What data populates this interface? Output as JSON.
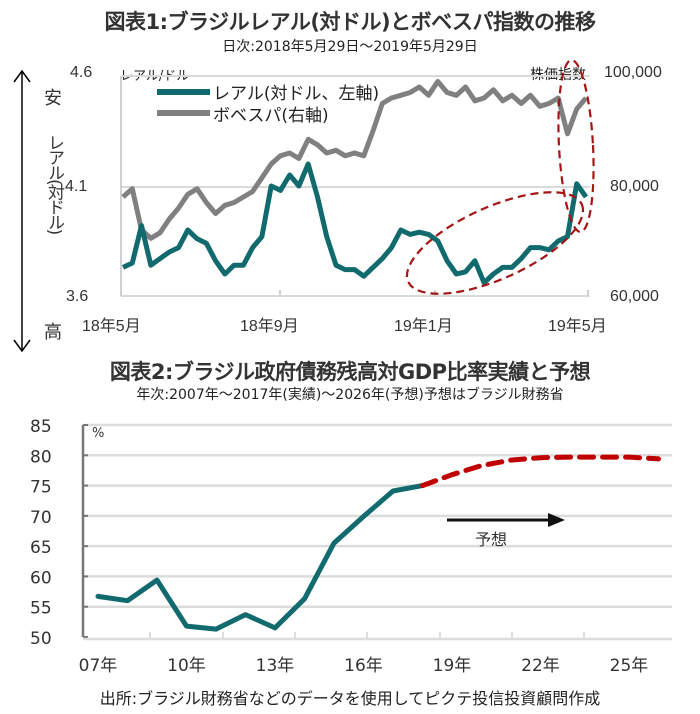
{
  "chart_data": [
    {
      "type": "line",
      "title": "図表1:ブラジルレアル(対ドル)とボベスパ指数の推移",
      "subtitle": "日次:2018年5月29日〜2019年5月29日",
      "left_axis": {
        "unit_label": "レアル/ドル",
        "ticks": [
          "4.6",
          "4.1",
          "3.6"
        ],
        "ylim": [
          3.6,
          4.6
        ],
        "top_label": "安",
        "bottom_label": "高",
        "vertical_label": "レアル(対ドル)"
      },
      "right_axis": {
        "unit_label": "株価指数",
        "ticks": [
          "100,000",
          "80,000",
          "60,000"
        ],
        "ylim": [
          60000,
          100000
        ]
      },
      "x_ticks": [
        "18年5月",
        "18年9月",
        "19年1月",
        "19年5月"
      ],
      "grid": true,
      "legend_placement": "top-left",
      "series": [
        {
          "name": "レアル(対ドル、左軸)",
          "axis": "left",
          "color": "#116a6e",
          "x": [
            0,
            2,
            4,
            6,
            8,
            10,
            12,
            14,
            16,
            18,
            20,
            22,
            24,
            26,
            28,
            30,
            32,
            34,
            36,
            38,
            40,
            42,
            44,
            46,
            48,
            50,
            52,
            54,
            56,
            58,
            60,
            62,
            64,
            66,
            68,
            70,
            72,
            74,
            76,
            78,
            80,
            82,
            84,
            86,
            88,
            90,
            92,
            94,
            96,
            98,
            100
          ],
          "values": [
            3.73,
            3.75,
            3.92,
            3.74,
            3.77,
            3.8,
            3.82,
            3.9,
            3.86,
            3.84,
            3.76,
            3.7,
            3.74,
            3.74,
            3.82,
            3.87,
            4.1,
            4.08,
            4.15,
            4.1,
            4.2,
            4.05,
            3.87,
            3.74,
            3.72,
            3.72,
            3.69,
            3.73,
            3.77,
            3.82,
            3.9,
            3.88,
            3.89,
            3.88,
            3.85,
            3.76,
            3.7,
            3.71,
            3.76,
            3.66,
            3.7,
            3.73,
            3.73,
            3.77,
            3.82,
            3.82,
            3.81,
            3.85,
            3.87,
            4.11,
            4.05
          ]
        },
        {
          "name": "ボベスパ(右軸)",
          "axis": "right",
          "color": "#808080",
          "x": [
            0,
            2,
            4,
            6,
            8,
            10,
            12,
            14,
            16,
            18,
            20,
            22,
            24,
            26,
            28,
            30,
            32,
            34,
            36,
            38,
            40,
            42,
            44,
            46,
            48,
            50,
            52,
            54,
            56,
            58,
            60,
            62,
            64,
            66,
            68,
            70,
            72,
            74,
            76,
            78,
            80,
            82,
            84,
            86,
            88,
            90,
            92,
            94,
            96,
            98,
            100
          ],
          "values": [
            78000,
            79500,
            72000,
            70500,
            71500,
            74000,
            76000,
            78500,
            79500,
            77000,
            75000,
            76500,
            77000,
            78000,
            79000,
            81500,
            84000,
            85500,
            86000,
            85000,
            88500,
            87500,
            86000,
            86500,
            85500,
            86000,
            85500,
            90000,
            95000,
            96000,
            96500,
            97000,
            98000,
            96500,
            99000,
            97000,
            96500,
            98000,
            95500,
            96000,
            97500,
            95500,
            96500,
            95000,
            96500,
            94500,
            95000,
            96000,
            89500,
            94000,
            96000
          ]
        }
      ],
      "annotations": [
        "dashed-red-ellipse around 19年1月〜19年5月 real rise",
        "dashed-red-ellipse around latest values"
      ]
    },
    {
      "type": "line",
      "title": "図表2:ブラジル政府債務残高対GDP比率実績と予想",
      "subtitle": "年次:2007年〜2017年(実績)〜2026年(予想)予想はブラジル財務省",
      "ylabel": "%",
      "ylim": [
        50,
        85
      ],
      "y_ticks": [
        "85",
        "80",
        "75",
        "70",
        "65",
        "60",
        "55",
        "50"
      ],
      "x_ticks": [
        "07年",
        "10年",
        "13年",
        "16年",
        "19年",
        "22年",
        "25年"
      ],
      "grid": true,
      "annotation": "予想",
      "series": [
        {
          "name": "実績",
          "color": "#116a6e",
          "style": "solid",
          "x": [
            2007,
            2008,
            2009,
            2010,
            2011,
            2012,
            2013,
            2014,
            2015,
            2016,
            2017,
            2018
          ],
          "values": [
            56.7,
            56.0,
            59.4,
            51.8,
            51.3,
            53.7,
            51.5,
            56.3,
            65.5,
            69.9,
            74.1,
            75.0
          ]
        },
        {
          "name": "予想",
          "color": "#c00000",
          "style": "dashed",
          "x": [
            2018,
            2019,
            2020,
            2021,
            2022,
            2023,
            2024,
            2025,
            2026
          ],
          "values": [
            75.0,
            76.8,
            78.3,
            79.2,
            79.6,
            79.7,
            79.7,
            79.7,
            79.4
          ]
        }
      ]
    }
  ],
  "source_note": "出所:ブラジル財務省などのデータを使用してピクテ投信投資顧問作成"
}
